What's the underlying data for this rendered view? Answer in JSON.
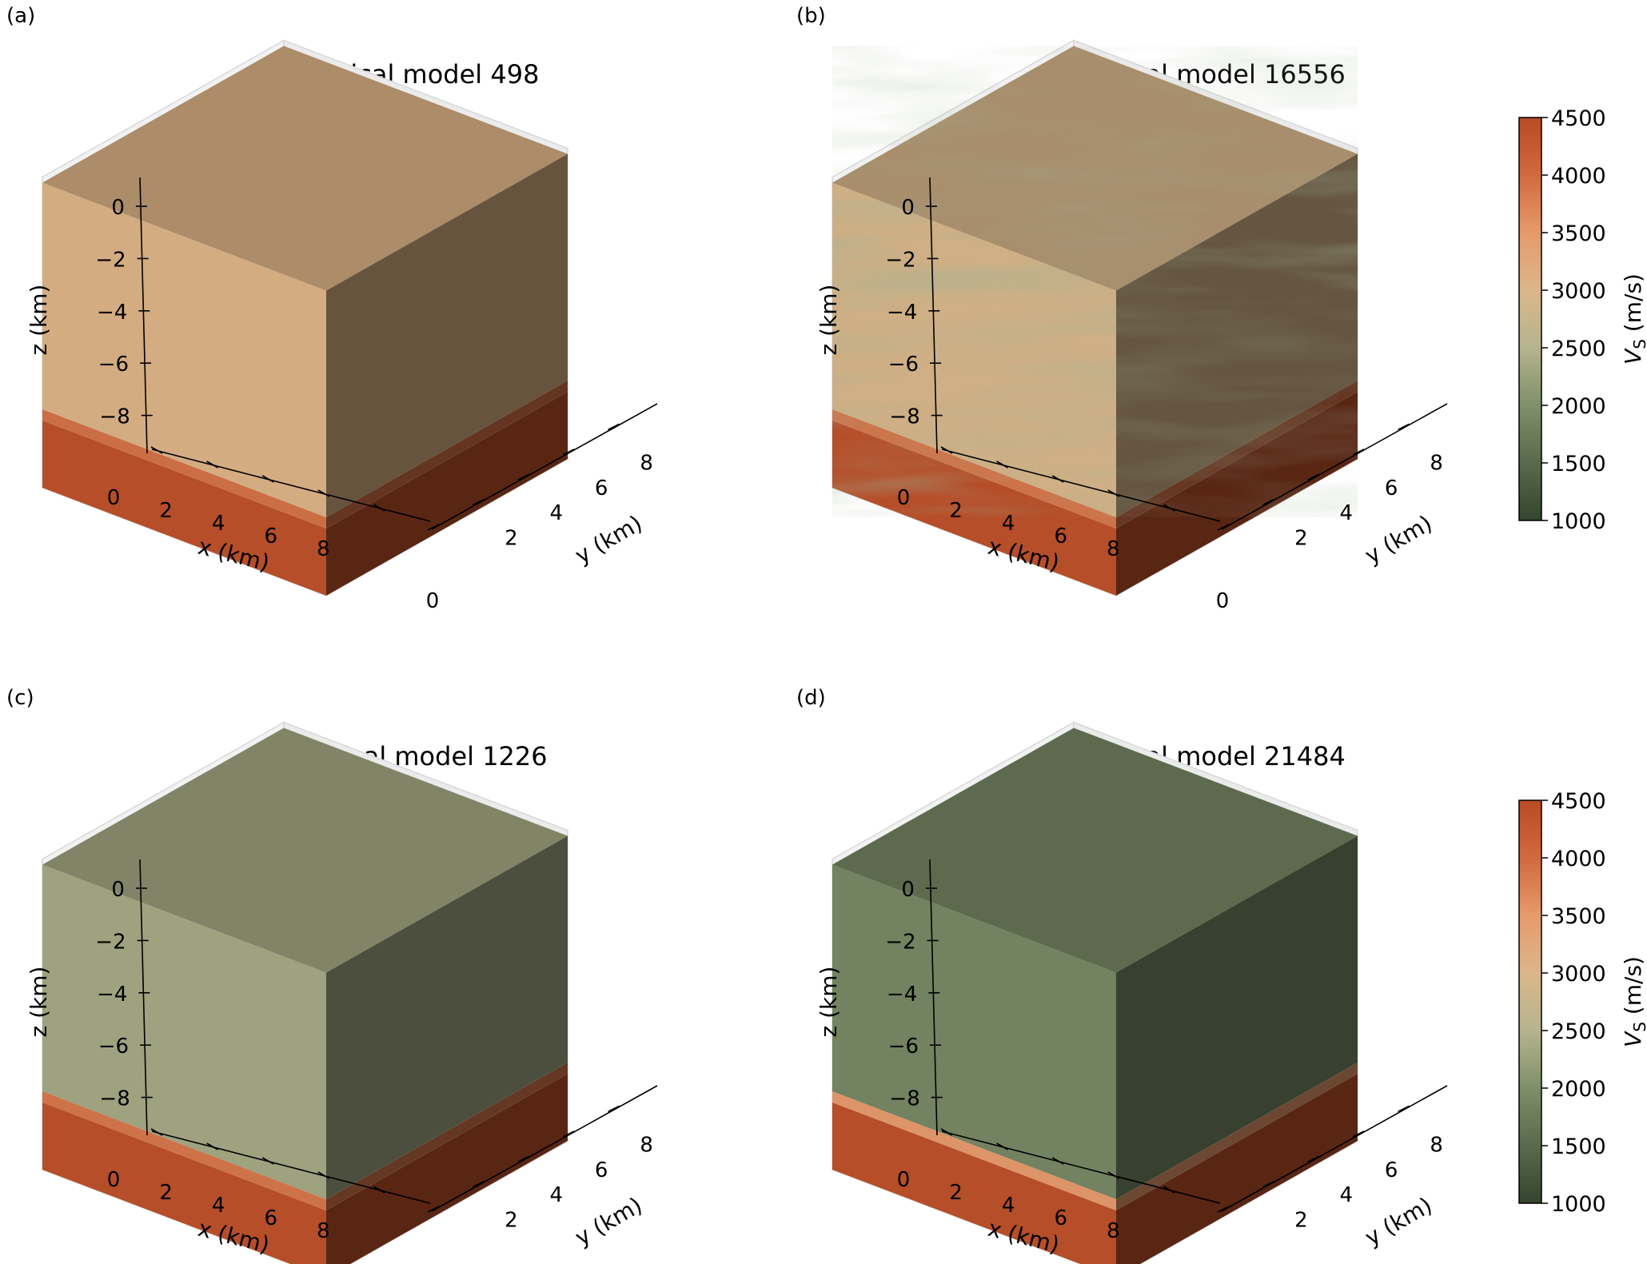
{
  "figure": {
    "colorbar": {
      "label_main": "V",
      "label_sub": "S",
      "label_unit": " (m/s)",
      "min": 1000,
      "max": 4500,
      "ticks": [
        1000,
        1500,
        2000,
        2500,
        3000,
        3500,
        4000,
        4500
      ],
      "stops": [
        {
          "value": 1000,
          "color": "#34452f"
        },
        {
          "value": 2000,
          "color": "#7f8f6a"
        },
        {
          "value": 2500,
          "color": "#b5b48f"
        },
        {
          "value": 3000,
          "color": "#dbb68a"
        },
        {
          "value": 3500,
          "color": "#e59a6c"
        },
        {
          "value": 4000,
          "color": "#d1693f"
        },
        {
          "value": 4500,
          "color": "#b84b25"
        }
      ]
    },
    "axes": {
      "x_label": "x (km)",
      "y_label": "y (km)",
      "z_label": "z (km)",
      "x_ticks": [
        0,
        2,
        4,
        6,
        8
      ],
      "y_ticks": [
        0,
        2,
        4,
        6,
        8
      ],
      "z_ticks": [
        0,
        -2,
        -4,
        -6,
        -8
      ],
      "x_range": [
        0,
        10
      ],
      "y_range": [
        0,
        10
      ],
      "z_range": [
        -10,
        0
      ]
    }
  },
  "chart_data": [
    {
      "type": "3d-block",
      "panel": "(a)",
      "title": "Geological model 498",
      "layers": [
        {
          "z_top": 0,
          "z_bottom": -7.2,
          "vs": 3050
        },
        {
          "z_top": -7.2,
          "z_bottom": -7.6,
          "vs": 3900
        },
        {
          "z_top": -7.6,
          "z_bottom": -10,
          "vs": 4400
        }
      ],
      "heterogeneous": false
    },
    {
      "type": "3d-block",
      "panel": "(b)",
      "title": "Geological model 16556",
      "layers": [
        {
          "z_top": 0,
          "z_bottom": -7.2,
          "vs": 2950
        },
        {
          "z_top": -7.2,
          "z_bottom": -7.6,
          "vs": 3850
        },
        {
          "z_top": -7.6,
          "z_bottom": -10,
          "vs": 4400
        }
      ],
      "heterogeneous": true
    },
    {
      "type": "3d-block",
      "panel": "(c)",
      "title": "Geological model 1226",
      "layers": [
        {
          "z_top": 0,
          "z_bottom": -7.2,
          "vs": 2350
        },
        {
          "z_top": -7.2,
          "z_bottom": -7.6,
          "vs": 3850
        },
        {
          "z_top": -7.6,
          "z_bottom": -10,
          "vs": 4400
        }
      ],
      "heterogeneous": false
    },
    {
      "type": "3d-block",
      "panel": "(d)",
      "title": "Geological model 21484",
      "layers": [
        {
          "z_top": 0,
          "z_bottom": -7.2,
          "vs": 1900
        },
        {
          "z_top": -7.2,
          "z_bottom": -7.6,
          "vs": 3500
        },
        {
          "z_top": -7.6,
          "z_bottom": -10,
          "vs": 4400
        }
      ],
      "heterogeneous": false
    }
  ]
}
